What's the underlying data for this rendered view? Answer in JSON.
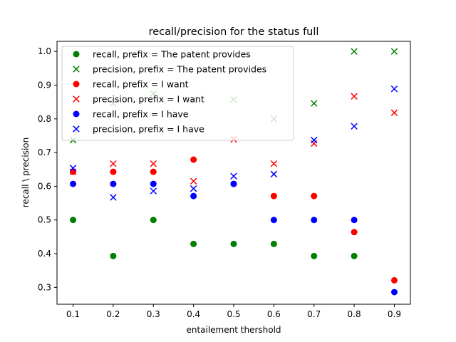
{
  "chart_data": {
    "type": "scatter",
    "title": "recall/precision for the status full",
    "xlabel": "entailement thershold",
    "ylabel": "recall \\ precision",
    "xlim": [
      0.06,
      0.94
    ],
    "ylim": [
      0.25,
      1.03
    ],
    "xticks": [
      0.1,
      0.2,
      0.3,
      0.4,
      0.5,
      0.6,
      0.7,
      0.8,
      0.9
    ],
    "xtick_labels": [
      "0.1",
      "0.2",
      "0.3",
      "0.4",
      "0.5",
      "0.6",
      "0.7",
      "0.8",
      "0.9"
    ],
    "yticks": [
      0.3,
      0.4,
      0.5,
      0.6,
      0.7,
      0.8,
      0.9,
      1.0
    ],
    "ytick_labels": [
      "0.3",
      "0.4",
      "0.5",
      "0.6",
      "0.7",
      "0.8",
      "0.9",
      "1.0"
    ],
    "grid": false,
    "legend_position": "upper-left",
    "x": [
      0.1,
      0.2,
      0.3,
      0.4,
      0.5,
      0.6,
      0.7,
      0.8,
      0.9
    ],
    "series": [
      {
        "name": "recall, prefix = The patent provides",
        "marker": "circle",
        "color": "#008000",
        "values": [
          0.5,
          0.393,
          0.5,
          0.429,
          0.429,
          0.429,
          0.393,
          0.393,
          null
        ]
      },
      {
        "name": "precision, prefix = The patent provides",
        "marker": "x",
        "color": "#008000",
        "values": [
          0.737,
          0.846,
          0.875,
          0.857,
          0.857,
          0.8,
          0.846,
          1.0,
          1.0
        ]
      },
      {
        "name": "recall, prefix = I want",
        "marker": "circle",
        "color": "#ff0000",
        "values": [
          0.643,
          0.643,
          0.643,
          0.679,
          0.607,
          0.571,
          0.571,
          0.464,
          0.321
        ]
      },
      {
        "name": "precision, prefix = I want",
        "marker": "x",
        "color": "#ff0000",
        "values": [
          0.643,
          0.667,
          0.667,
          0.615,
          0.739,
          0.667,
          0.727,
          0.867,
          0.818
        ]
      },
      {
        "name": "recall, prefix = I have",
        "marker": "circle",
        "color": "#0000ff",
        "values": [
          0.607,
          0.607,
          0.607,
          0.571,
          0.607,
          0.5,
          0.5,
          0.5,
          0.286
        ]
      },
      {
        "name": "precision, prefix = I have",
        "marker": "x",
        "color": "#0000ff",
        "values": [
          0.654,
          0.567,
          0.586,
          0.593,
          0.63,
          0.636,
          0.737,
          0.778,
          0.889
        ]
      }
    ]
  }
}
